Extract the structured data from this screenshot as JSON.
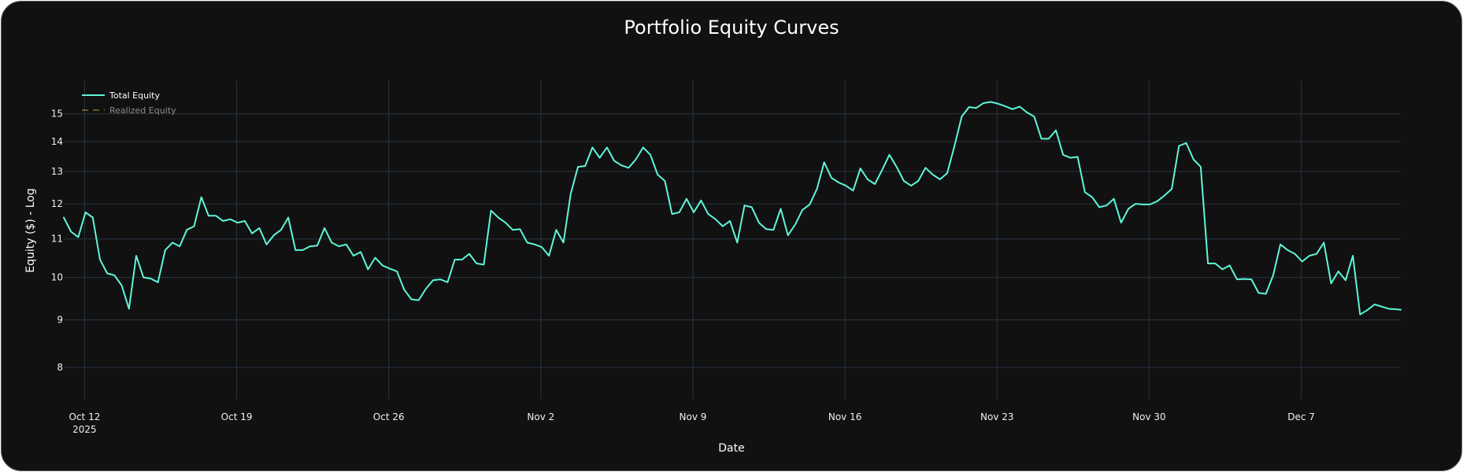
{
  "chart_data": {
    "type": "line",
    "title": "Portfolio Equity Curves",
    "xlabel": "Date",
    "ylabel": "Equity ($) - Log",
    "y_scale": "log",
    "ylim": [
      7.4,
      16.3
    ],
    "xlim": [
      "2025-10-11T01:00",
      "2025-12-11T14:00"
    ],
    "y_ticks": [
      8,
      9,
      10,
      11,
      12,
      13,
      14,
      15
    ],
    "x_ticks": [
      {
        "date": "2025-10-12",
        "label": "Oct 12",
        "sublabel": "2025"
      },
      {
        "date": "2025-10-19",
        "label": "Oct 19"
      },
      {
        "date": "2025-10-26",
        "label": "Oct 26"
      },
      {
        "date": "2025-11-02",
        "label": "Nov 2"
      },
      {
        "date": "2025-11-09",
        "label": "Nov 9"
      },
      {
        "date": "2025-11-16",
        "label": "Nov 16"
      },
      {
        "date": "2025-11-23",
        "label": "Nov 23"
      },
      {
        "date": "2025-11-30",
        "label": "Nov 30"
      },
      {
        "date": "2025-12-07",
        "label": "Dec 7"
      }
    ],
    "grid": true,
    "legend_position": "top-left",
    "background": "#111111",
    "series": [
      {
        "name": "Total Equity",
        "color": "#5ff5d8",
        "dash": "solid",
        "visible": true,
        "x": [
          "2025-10-11T01:00",
          "2025-10-11T09:00",
          "2025-10-11T17:00",
          "2025-10-12T01:00",
          "2025-10-12T09:00",
          "2025-10-12T17:00",
          "2025-10-13T01:00",
          "2025-10-13T09:00",
          "2025-10-13T17:00",
          "2025-10-14T01:00",
          "2025-10-14T09:00",
          "2025-10-14T17:00",
          "2025-10-15T01:00",
          "2025-10-15T09:00",
          "2025-10-15T17:00",
          "2025-10-16T01:00",
          "2025-10-16T09:00",
          "2025-10-16T17:00",
          "2025-10-17T01:00",
          "2025-10-17T09:00",
          "2025-10-17T17:00",
          "2025-10-18T01:00",
          "2025-10-18T09:00",
          "2025-10-18T17:00",
          "2025-10-19T01:00",
          "2025-10-19T09:00",
          "2025-10-19T17:00",
          "2025-10-20T01:00",
          "2025-10-20T09:00",
          "2025-10-20T17:00",
          "2025-10-21T01:00",
          "2025-10-21T09:00",
          "2025-10-21T17:00",
          "2025-10-22T01:00",
          "2025-10-22T09:00",
          "2025-10-22T17:00",
          "2025-10-23T01:00",
          "2025-10-23T09:00",
          "2025-10-23T17:00",
          "2025-10-24T01:00",
          "2025-10-24T09:00",
          "2025-10-24T17:00",
          "2025-10-25T01:00",
          "2025-10-25T09:00",
          "2025-10-25T17:00",
          "2025-10-26T01:00",
          "2025-10-26T09:00",
          "2025-10-26T17:00",
          "2025-10-27T01:00",
          "2025-10-27T09:00",
          "2025-10-27T17:00",
          "2025-10-28T01:00",
          "2025-10-28T09:00",
          "2025-10-28T17:00",
          "2025-10-29T01:00",
          "2025-10-29T09:00",
          "2025-10-29T17:00",
          "2025-10-30T01:00",
          "2025-10-30T09:00",
          "2025-10-30T17:00",
          "2025-10-31T01:00",
          "2025-10-31T09:00",
          "2025-10-31T17:00",
          "2025-11-01T01:00",
          "2025-11-01T09:00",
          "2025-11-01T17:00",
          "2025-11-02T01:00",
          "2025-11-02T09:00",
          "2025-11-02T17:00",
          "2025-11-03T01:00",
          "2025-11-03T09:00",
          "2025-11-03T17:00",
          "2025-11-04T01:00",
          "2025-11-04T09:00",
          "2025-11-04T17:00",
          "2025-11-05T01:00",
          "2025-11-05T09:00",
          "2025-11-05T17:00",
          "2025-11-06T01:00",
          "2025-11-06T09:00",
          "2025-11-06T17:00",
          "2025-11-07T01:00",
          "2025-11-07T09:00",
          "2025-11-07T17:00",
          "2025-11-08T01:00",
          "2025-11-08T09:00",
          "2025-11-08T17:00",
          "2025-11-09T01:00",
          "2025-11-09T09:00",
          "2025-11-09T17:00",
          "2025-11-10T01:00",
          "2025-11-10T09:00",
          "2025-11-10T17:00",
          "2025-11-11T01:00",
          "2025-11-11T09:00",
          "2025-11-11T17:00",
          "2025-11-12T01:00",
          "2025-11-12T09:00",
          "2025-11-12T17:00",
          "2025-11-13T01:00",
          "2025-11-13T09:00",
          "2025-11-13T17:00",
          "2025-11-14T01:00",
          "2025-11-14T09:00",
          "2025-11-14T17:00",
          "2025-11-15T01:00",
          "2025-11-15T09:00",
          "2025-11-15T17:00",
          "2025-11-16T01:00",
          "2025-11-16T09:00",
          "2025-11-16T17:00",
          "2025-11-17T01:00",
          "2025-11-17T09:00",
          "2025-11-17T17:00",
          "2025-11-18T01:00",
          "2025-11-18T09:00",
          "2025-11-18T17:00",
          "2025-11-19T01:00",
          "2025-11-19T09:00",
          "2025-11-19T17:00",
          "2025-11-20T01:00",
          "2025-11-20T09:00",
          "2025-11-20T17:00",
          "2025-11-21T01:00",
          "2025-11-21T09:00",
          "2025-11-21T17:00",
          "2025-11-22T01:00",
          "2025-11-22T09:00",
          "2025-11-22T17:00",
          "2025-11-23T01:00",
          "2025-11-23T09:00",
          "2025-11-23T17:00",
          "2025-11-24T01:00",
          "2025-11-24T09:00",
          "2025-11-24T17:00",
          "2025-11-25T01:00",
          "2025-11-25T09:00",
          "2025-11-25T17:00",
          "2025-11-26T01:00",
          "2025-11-26T09:00",
          "2025-11-26T17:00",
          "2025-11-27T01:00",
          "2025-11-27T09:00",
          "2025-11-27T17:00",
          "2025-11-28T01:00",
          "2025-11-28T09:00",
          "2025-11-28T17:00",
          "2025-11-29T01:00",
          "2025-11-29T09:00",
          "2025-11-29T17:00",
          "2025-11-30T01:00",
          "2025-11-30T09:00",
          "2025-11-30T17:00",
          "2025-12-01T01:00",
          "2025-12-01T09:00",
          "2025-12-01T17:00",
          "2025-12-02T01:00",
          "2025-12-02T09:00",
          "2025-12-02T17:00",
          "2025-12-03T01:00",
          "2025-12-03T09:00",
          "2025-12-03T17:00",
          "2025-12-04T01:00",
          "2025-12-04T09:00",
          "2025-12-04T17:00",
          "2025-12-05T01:00",
          "2025-12-05T09:00",
          "2025-12-05T17:00",
          "2025-12-06T01:00",
          "2025-12-06T09:00",
          "2025-12-06T17:00",
          "2025-12-07T01:00",
          "2025-12-07T09:00",
          "2025-12-07T17:00",
          "2025-12-08T01:00",
          "2025-12-08T09:00",
          "2025-12-08T17:00",
          "2025-12-09T01:00",
          "2025-12-09T09:00",
          "2025-12-09T17:00",
          "2025-12-10T01:00",
          "2025-12-10T09:00",
          "2025-12-10T17:00",
          "2025-12-11T01:00",
          "2025-12-11T09:00",
          "2025-12-11T14:00"
        ],
        "y": [
          11.6,
          11.2,
          11.05,
          11.75,
          11.6,
          10.45,
          10.1,
          10.05,
          9.8,
          9.25,
          10.55,
          10.0,
          9.97,
          9.88,
          10.7,
          10.9,
          10.8,
          11.25,
          11.35,
          12.2,
          11.65,
          11.65,
          11.5,
          11.55,
          11.45,
          11.5,
          11.15,
          11.3,
          10.85,
          11.1,
          11.25,
          11.6,
          10.7,
          10.7,
          10.8,
          10.82,
          11.3,
          10.9,
          10.8,
          10.85,
          10.55,
          10.65,
          10.2,
          10.5,
          10.3,
          10.22,
          10.15,
          9.7,
          9.47,
          9.45,
          9.72,
          9.93,
          9.95,
          9.88,
          10.45,
          10.45,
          10.6,
          10.35,
          10.32,
          11.8,
          11.6,
          11.45,
          11.25,
          11.27,
          10.9,
          10.85,
          10.78,
          10.55,
          11.25,
          10.9,
          12.3,
          13.15,
          13.18,
          13.8,
          13.45,
          13.8,
          13.35,
          13.2,
          13.12,
          13.4,
          13.8,
          13.55,
          12.9,
          12.7,
          11.7,
          11.75,
          12.15,
          11.75,
          12.1,
          11.7,
          11.55,
          11.35,
          11.5,
          10.9,
          11.95,
          11.9,
          11.45,
          11.27,
          11.25,
          11.85,
          11.1,
          11.4,
          11.82,
          11.98,
          12.45,
          13.3,
          12.8,
          12.65,
          12.55,
          12.4,
          13.1,
          12.75,
          12.6,
          13.05,
          13.55,
          13.15,
          12.7,
          12.55,
          12.7,
          13.12,
          12.9,
          12.75,
          12.95,
          13.85,
          14.9,
          15.25,
          15.22,
          15.4,
          15.45,
          15.38,
          15.28,
          15.17,
          15.27,
          15.05,
          14.9,
          14.1,
          14.1,
          14.4,
          13.55,
          13.45,
          13.48,
          12.35,
          12.2,
          11.9,
          11.95,
          12.15,
          11.45,
          11.85,
          12.0,
          11.98,
          11.98,
          12.08,
          12.25,
          12.45,
          13.85,
          13.95,
          13.4,
          13.15,
          10.35,
          10.35,
          10.2,
          10.3,
          9.95,
          9.96,
          9.95,
          9.62,
          9.6,
          10.05,
          10.85,
          10.7,
          10.6,
          10.4,
          10.55,
          10.6,
          10.9,
          9.85,
          10.15,
          9.93,
          10.55,
          9.12,
          9.22,
          9.35,
          9.3,
          9.25,
          9.24,
          9.23
        ]
      },
      {
        "name": "Realized Equity",
        "color": "#c9a227",
        "dash": "dash",
        "visible": false
      }
    ]
  }
}
